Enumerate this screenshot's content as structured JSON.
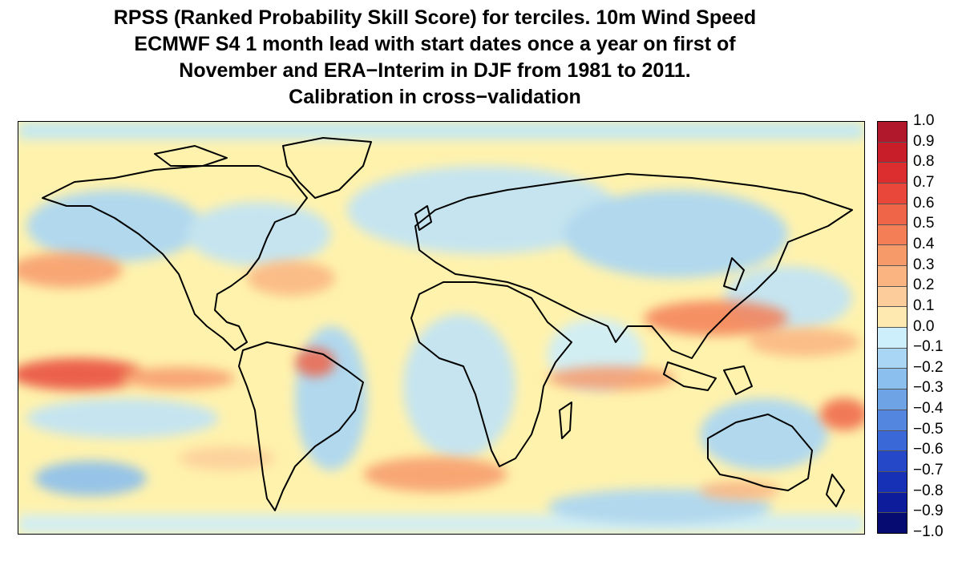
{
  "title_lines": [
    "RPSS (Ranked Probability Skill Score) for terciles. 10m Wind Speed",
    "ECMWF S4 1 month lead with start dates once a year on first of",
    "November and ERA−Interim in DJF from 1981 to 2011.",
    "Calibration in cross−validation"
  ],
  "map": {
    "projection": "equirectangular global",
    "longitude_range": [
      -180,
      180
    ],
    "latitude_range": [
      -90,
      90
    ],
    "field": "RPSS 10m wind speed",
    "coastlines": true
  },
  "colorbar": {
    "labels": [
      "1.0",
      "0.9",
      "0.8",
      "0.7",
      "0.6",
      "0.5",
      "0.4",
      "0.3",
      "0.2",
      "0.1",
      "0.0",
      "−0.1",
      "−0.2",
      "−0.3",
      "−0.4",
      "−0.5",
      "−0.6",
      "−0.7",
      "−0.8",
      "−0.9",
      "−1.0"
    ],
    "colors": [
      "#b2182b",
      "#c81e2a",
      "#dc2e2e",
      "#e8473a",
      "#ef6548",
      "#f47f56",
      "#f79a6a",
      "#fab482",
      "#fccd9a",
      "#feeab0",
      "#cdeefb",
      "#a9d6f5",
      "#8bbfee",
      "#6ea3e6",
      "#5386df",
      "#3a68d6",
      "#2548c9",
      "#1630b6",
      "#0d1c9a",
      "#060b72"
    ]
  }
}
